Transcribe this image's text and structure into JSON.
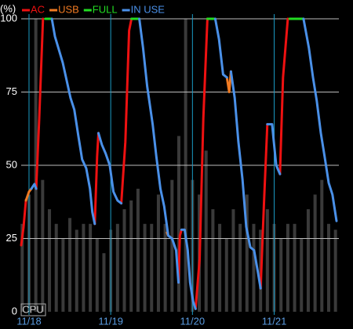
{
  "chart_data": {
    "type": "line",
    "y_unit": "(%)",
    "xlim": [
      -2.3,
      91.0
    ],
    "ylim": [
      0,
      100
    ],
    "xticks": [
      {
        "value": 0,
        "label": "11/18"
      },
      {
        "value": 24,
        "label": "11/19"
      },
      {
        "value": 48,
        "label": "11/20"
      },
      {
        "value": 72,
        "label": "11/21"
      }
    ],
    "yticks": [
      0,
      25,
      50,
      75,
      100
    ],
    "grid": true,
    "series": [
      {
        "name": "AC",
        "color": "#ee1111",
        "x": [
          -2.3,
          -1.6,
          -0.9,
          null,
          2.1,
          3.0,
          4.1,
          null,
          19.3,
          20.0,
          20.4,
          null,
          27.1,
          28.3,
          29.4,
          30.1,
          null,
          43.9,
          44.3,
          44.8,
          null,
          48.9,
          50.1,
          51.2,
          52.4,
          null,
          68.0,
          69.1,
          70.0,
          null,
          73.7,
          74.6,
          76.0
        ],
        "values": [
          22.7,
          28.9,
          38.2,
          null,
          42,
          66,
          100,
          null,
          30,
          53,
          61,
          null,
          37,
          58,
          96,
          100,
          null,
          10,
          26,
          28,
          null,
          1,
          18,
          66,
          100,
          null,
          8,
          39.6,
          64,
          null,
          47,
          80,
          100
        ]
      },
      {
        "name": "USB",
        "color": "#f07a22",
        "x": [
          -0.9,
          0,
          0.7,
          null,
          40.5,
          40.9,
          null,
          58.1,
          58.8,
          59.3
        ],
        "values": [
          38,
          41,
          42,
          null,
          27,
          26,
          null,
          80,
          75,
          82
        ]
      },
      {
        "name": "FULL",
        "color": "#22dd22",
        "x": [
          4.8,
          6.7,
          null,
          30.1,
          32.4,
          null,
          52.4,
          54.7,
          null,
          76.5,
          80.6
        ],
        "values": [
          100,
          100,
          null,
          100,
          100,
          null,
          100,
          100,
          null,
          100,
          100
        ]
      },
      {
        "name": "IN USE",
        "color": "#4a90e8",
        "x": [
          0.7,
          1.6,
          2.1,
          null,
          6.7,
          7.6,
          9.9,
          12.2,
          13.3,
          14.5,
          15.6,
          16.8,
          17.9,
          18.6,
          19.3,
          null,
          20.4,
          21.4,
          22.5,
          23.7,
          24.8,
          26.0,
          27.1,
          null,
          32.4,
          33.5,
          34.7,
          36.3,
          37.4,
          38.6,
          39.7,
          40.9,
          42.0,
          43.2,
          43.9,
          null,
          44.8,
          45.7,
          46.6,
          47.3,
          48.2,
          48.9,
          null,
          54.7,
          55.8,
          57.0,
          58.1,
          null,
          59.3,
          60.4,
          61.5,
          62.7,
          63.8,
          65.0,
          66.1,
          67.3,
          68.0,
          null,
          70.0,
          71.4,
          71.8,
          72.6,
          73.7,
          null,
          80.6,
          82.2,
          83.4,
          84.5,
          85.7,
          86.8,
          88.0,
          89.1,
          90.3
        ],
        "values": [
          42,
          43.6,
          42,
          null,
          100,
          94,
          85,
          73,
          69,
          60,
          52,
          49,
          42,
          34,
          30,
          null,
          61,
          57,
          54,
          50,
          41,
          38,
          37,
          null,
          100,
          90,
          77,
          64,
          53,
          42,
          36,
          26,
          25,
          21,
          10,
          null,
          28,
          28,
          21,
          10,
          3.5,
          1,
          null,
          100,
          93,
          81,
          80,
          null,
          82,
          73,
          58,
          45,
          29,
          22,
          21,
          13,
          8,
          null,
          64,
          64,
          59,
          50,
          47,
          null,
          100,
          90,
          80,
          72,
          61,
          53,
          44,
          40,
          31
        ]
      }
    ],
    "cpu": {
      "name": "CPU",
      "color": "#3a3a3a",
      "x": [
        -2,
        0,
        2,
        4,
        6,
        8,
        10,
        12,
        14,
        16,
        18,
        20,
        22,
        24,
        26,
        28,
        30,
        32,
        34,
        36,
        38,
        40,
        42,
        44,
        46,
        48,
        50,
        52,
        54,
        56,
        58,
        60,
        62,
        64,
        66,
        68,
        70,
        72,
        74,
        76,
        78,
        80,
        82,
        84,
        86,
        88,
        90
      ],
      "values": [
        30,
        40,
        100,
        45,
        35,
        30,
        25,
        32,
        28,
        30,
        30,
        25,
        20,
        28,
        30,
        35,
        38,
        42,
        30,
        30,
        40,
        30,
        45,
        60,
        100,
        45,
        40,
        55,
        35,
        30,
        25,
        35,
        30,
        40,
        30,
        28,
        35,
        30,
        25,
        30,
        30,
        25,
        35,
        40,
        45,
        30,
        28
      ]
    }
  }
}
